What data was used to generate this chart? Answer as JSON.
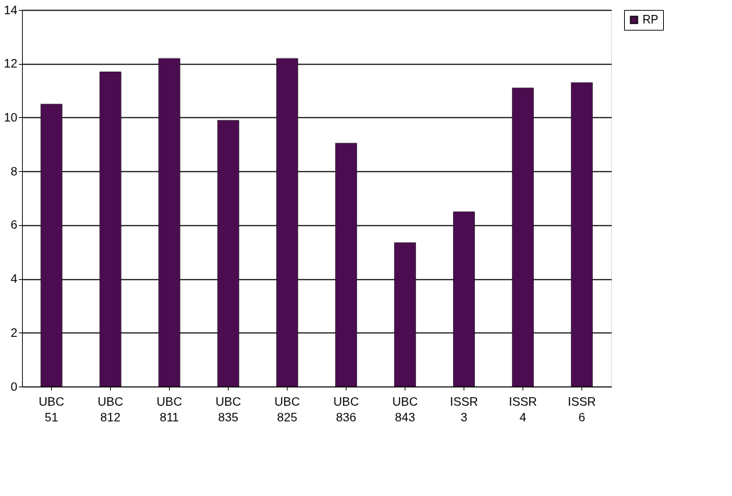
{
  "chart_data": {
    "type": "bar",
    "categories": [
      "UBC 51",
      "UBC 812",
      "UBC 811",
      "UBC 835",
      "UBC 825",
      "UBC 836",
      "UBC 843",
      "ISSR 3",
      "ISSR 4",
      "ISSR 6"
    ],
    "series": [
      {
        "name": "RP",
        "color": "#4b0d4f",
        "values": [
          10.5,
          11.7,
          12.2,
          9.9,
          12.2,
          9.05,
          5.35,
          6.5,
          11.1,
          11.3
        ]
      }
    ],
    "ylim": [
      0,
      14
    ],
    "yticks": [
      0,
      2,
      4,
      6,
      8,
      10,
      12,
      14
    ],
    "grid": "y",
    "legend": "right"
  }
}
